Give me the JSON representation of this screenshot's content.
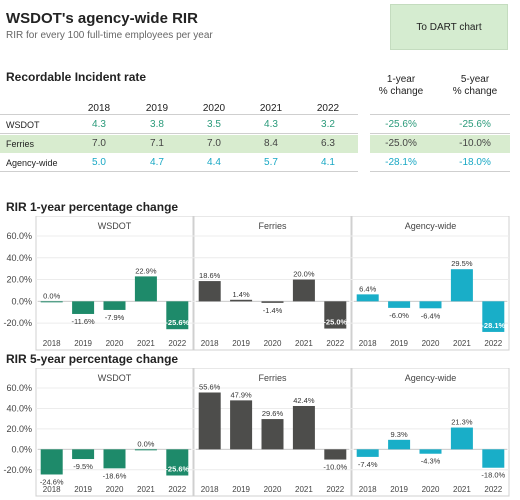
{
  "header": {
    "title": "WSDOT's agency-wide RIR",
    "subtitle": "RIR for every 100 full-time employees per year",
    "dart_button_label": "To DART chart"
  },
  "table": {
    "heading": "Recordable Incident rate",
    "years": [
      "2018",
      "2019",
      "2020",
      "2021",
      "2022"
    ],
    "change_headers": [
      "1-year\n% change",
      "5-year\n% change"
    ],
    "rows": [
      {
        "label": "WSDOT",
        "values": [
          "4.3",
          "3.8",
          "3.5",
          "4.3",
          "3.2"
        ],
        "one_year": "-25.6%",
        "five_year": "-25.6%",
        "color": "#2a9a7a"
      },
      {
        "label": "Ferries",
        "values": [
          "7.0",
          "7.1",
          "7.0",
          "8.4",
          "6.3"
        ],
        "one_year": "-25.0%",
        "five_year": "-10.0%",
        "color": "#444444"
      },
      {
        "label": "Agency-wide",
        "values": [
          "5.0",
          "4.7",
          "4.4",
          "5.7",
          "4.1"
        ],
        "one_year": "-28.1%",
        "five_year": "-18.0%",
        "color": "#19a8c4"
      }
    ]
  },
  "colors": {
    "wsdot": "#1e8a6a",
    "ferries": "#4d4d4b",
    "agency": "#19aec8",
    "highlight": "#d8eccf"
  },
  "chart_data": [
    {
      "type": "bar",
      "title": "RIR 1-year percentage change",
      "ylim": [
        -30,
        60
      ],
      "yticks": [
        "60.0%",
        "40.0%",
        "20.0%",
        "0.0%",
        "-20.0%"
      ],
      "categories": [
        "2018",
        "2019",
        "2020",
        "2021",
        "2022"
      ],
      "series": [
        {
          "name": "WSDOT",
          "values": [
            0.0,
            -11.6,
            -7.9,
            22.9,
            -25.6
          ],
          "labels": [
            "0.0%",
            "-11.6%",
            "-7.9%",
            "22.9%",
            "-25.6%"
          ]
        },
        {
          "name": "Ferries",
          "values": [
            18.6,
            1.4,
            -1.4,
            20.0,
            -25.0
          ],
          "labels": [
            "18.6%",
            "1.4%",
            "-1.4%",
            "20.0%",
            "-25.0%"
          ]
        },
        {
          "name": "Agency-wide",
          "values": [
            6.4,
            -6.0,
            -6.4,
            29.5,
            -28.1
          ],
          "labels": [
            "6.4%",
            "-6.0%",
            "-6.4%",
            "29.5%",
            "-28.1%"
          ]
        }
      ]
    },
    {
      "type": "bar",
      "title": "RIR 5-year percentage change",
      "ylim": [
        -30,
        60
      ],
      "yticks": [
        "60.0%",
        "40.0%",
        "20.0%",
        "0.0%",
        "-20.0%"
      ],
      "categories": [
        "2018",
        "2019",
        "2020",
        "2021",
        "2022"
      ],
      "series": [
        {
          "name": "WSDOT",
          "values": [
            -24.6,
            -9.5,
            -18.6,
            0.0,
            -25.6
          ],
          "labels": [
            "-24.6%",
            "-9.5%",
            "-18.6%",
            "0.0%",
            "-25.6%"
          ]
        },
        {
          "name": "Ferries",
          "values": [
            55.6,
            47.9,
            29.6,
            42.4,
            -10.0
          ],
          "labels": [
            "55.6%",
            "47.9%",
            "29.6%",
            "42.4%",
            "-10.0%"
          ]
        },
        {
          "name": "Agency-wide",
          "values": [
            -7.4,
            9.3,
            -4.3,
            21.3,
            -18.0
          ],
          "labels": [
            "-7.4%",
            "9.3%",
            "-4.3%",
            "21.3%",
            "-18.0%"
          ]
        }
      ]
    }
  ]
}
